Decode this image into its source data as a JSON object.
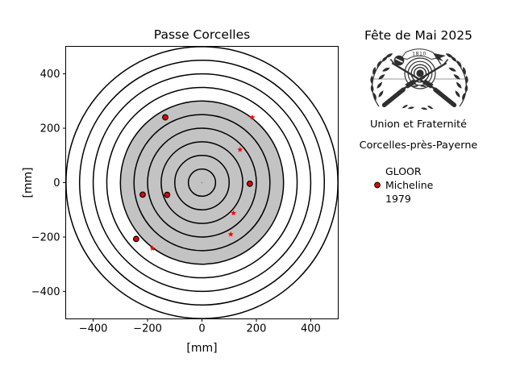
{
  "left_chart": {
    "title": "Passe Corcelles",
    "xlabel": "[mm]",
    "ylabel": "[mm]",
    "xticks": [
      {
        "v": -400,
        "label": "−400"
      },
      {
        "v": -200,
        "label": "−200"
      },
      {
        "v": 0,
        "label": "0"
      },
      {
        "v": 200,
        "label": "200"
      },
      {
        "v": 400,
        "label": "400"
      }
    ],
    "yticks": [
      {
        "v": 400,
        "label": "400"
      },
      {
        "v": 200,
        "label": "200"
      },
      {
        "v": 0,
        "label": "0"
      },
      {
        "v": -200,
        "label": "−200"
      },
      {
        "v": -400,
        "label": "−400"
      }
    ]
  },
  "chart_data": {
    "type": "scatter",
    "title": "Passe Corcelles",
    "xlabel": "[mm]",
    "ylabel": "[mm]",
    "xlim": [
      -501,
      501
    ],
    "ylim": [
      -501,
      501
    ],
    "grid": false,
    "legend_position": "right-outside",
    "target_rings": {
      "radii_mm": [
        50,
        100,
        150,
        200,
        250,
        300,
        350,
        400,
        450,
        500
      ],
      "fill_radius_mm": 300,
      "fill_color": "#c3c3c3",
      "ring_color": "#000000",
      "center_dot_color": "#8a8a8a"
    },
    "series": [
      {
        "name": "GLOOR Micheline 1979",
        "marker": "circle",
        "color": "#e60000",
        "edge_color": "#000000",
        "points": [
          [
            -135,
            240
          ],
          [
            176,
            -4
          ],
          [
            -218,
            -44
          ],
          [
            -128,
            -45
          ],
          [
            -242,
            -207
          ]
        ]
      },
      {
        "name": "",
        "marker": "star",
        "color": "#ff0000",
        "points": [
          [
            185,
            240
          ],
          [
            140,
            121
          ],
          [
            116,
            -112
          ],
          [
            106,
            -190
          ],
          [
            -182,
            -242
          ]
        ]
      }
    ]
  },
  "right_panel": {
    "title": "Fête de Mai 2025",
    "logo_banner": "1810",
    "org_line1": "Union et Fraternité",
    "org_line2": "Corcelles-près-Payerne",
    "legend": {
      "marker_color": "#e60000",
      "marker_edge_color": "#000000",
      "lines": [
        "GLOOR",
        "Micheline",
        "1979"
      ]
    }
  }
}
